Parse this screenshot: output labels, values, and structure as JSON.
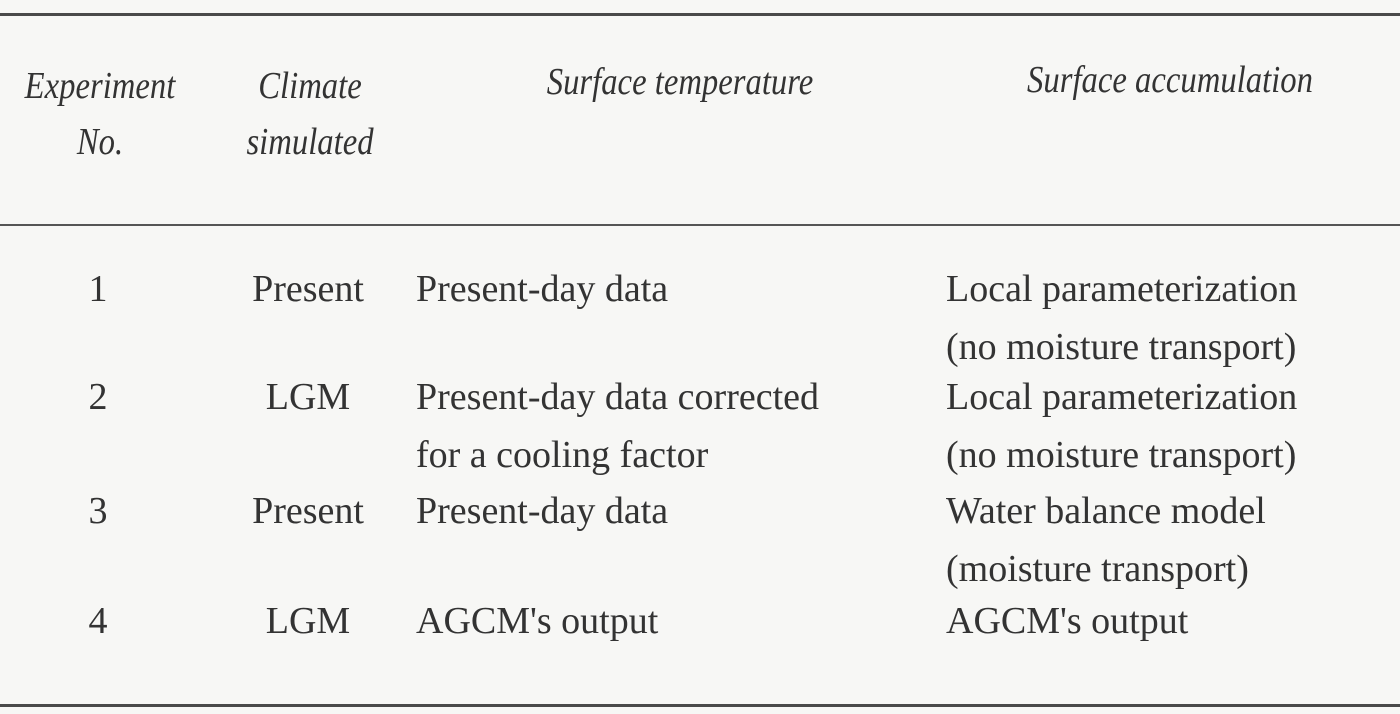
{
  "table": {
    "columns": [
      {
        "line1": "Experiment",
        "line2": "No."
      },
      {
        "line1": "Climate",
        "line2": "simulated"
      },
      {
        "line1": "Surface temperature",
        "line2": ""
      },
      {
        "line1": "Surface accumulation",
        "line2": ""
      }
    ],
    "rows": [
      {
        "experiment_no": "1",
        "climate": "Present",
        "temperature": [
          "Present-day data"
        ],
        "accumulation": [
          "Local parameterization",
          "(no moisture transport)"
        ]
      },
      {
        "experiment_no": "2",
        "climate": "LGM",
        "temperature": [
          "Present-day data corrected",
          "for a cooling factor"
        ],
        "accumulation": [
          "Local parameterization",
          "(no moisture transport)"
        ]
      },
      {
        "experiment_no": "3",
        "climate": "Present",
        "temperature": [
          "Present-day data"
        ],
        "accumulation": [
          "Water balance model",
          "(moisture transport)"
        ]
      },
      {
        "experiment_no": "4",
        "climate": "LGM",
        "temperature": [
          "AGCM's output"
        ],
        "accumulation": [
          "AGCM's output"
        ]
      }
    ]
  }
}
